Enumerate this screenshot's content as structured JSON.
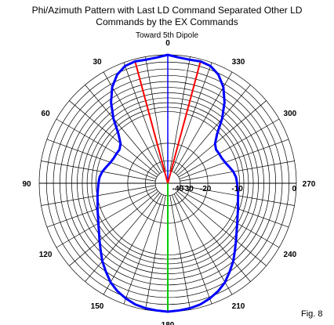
{
  "chart_data": {
    "type": "polar",
    "title_lines": [
      "Phi/Azimuth Pattern with Last LD Command Separated Other LD",
      "Commands by the EX Commands"
    ],
    "subtitle": "Toward 5th Dipole",
    "figure_label": "Fig. 8",
    "angle_labels": [
      "0",
      "330",
      "300",
      "270",
      "240",
      "210",
      "180",
      "150",
      "120",
      "90",
      "60",
      "30"
    ],
    "ring_labels": [
      "0",
      "-10",
      "-20",
      "-30",
      "-40"
    ],
    "db_range": [
      -40,
      0
    ],
    "grid": true,
    "colors": {
      "pattern": "#0000ff",
      "max_lines": "#ff0000",
      "forward_axis": "#0000ff",
      "rear_axis": "#00cc00",
      "grid": "#000000"
    },
    "pattern": {
      "phi_deg": [
        0,
        5,
        10,
        15,
        20,
        25,
        30,
        35,
        40,
        45,
        50,
        55,
        60,
        65,
        70,
        75,
        80,
        85,
        90,
        95,
        100,
        105,
        110,
        115,
        120,
        125,
        130,
        135,
        140,
        145,
        150,
        155,
        160,
        165,
        170,
        175,
        180
      ],
      "gain_db": [
        0,
        -0.3,
        -0.4,
        -0.3,
        -0.5,
        -1.2,
        -2.5,
        -4.5,
        -7.2,
        -10.5,
        -12.6,
        -13.4,
        -13.3,
        -13.2,
        -12.8,
        -12.1,
        -11.3,
        -10.8,
        -10.6,
        -10.4,
        -10.1,
        -9.8,
        -9.3,
        -8.8,
        -8.1,
        -7.3,
        -6.3,
        -5.2,
        -4.0,
        -3.0,
        -2.0,
        -1.3,
        -0.8,
        -0.4,
        -0.2,
        -0.1,
        0
      ],
      "symmetric": true
    },
    "max_lines": [
      {
        "phi_deg": 15,
        "gain_db": -0.3
      },
      {
        "phi_deg": 345,
        "gain_db": -0.3
      }
    ]
  }
}
